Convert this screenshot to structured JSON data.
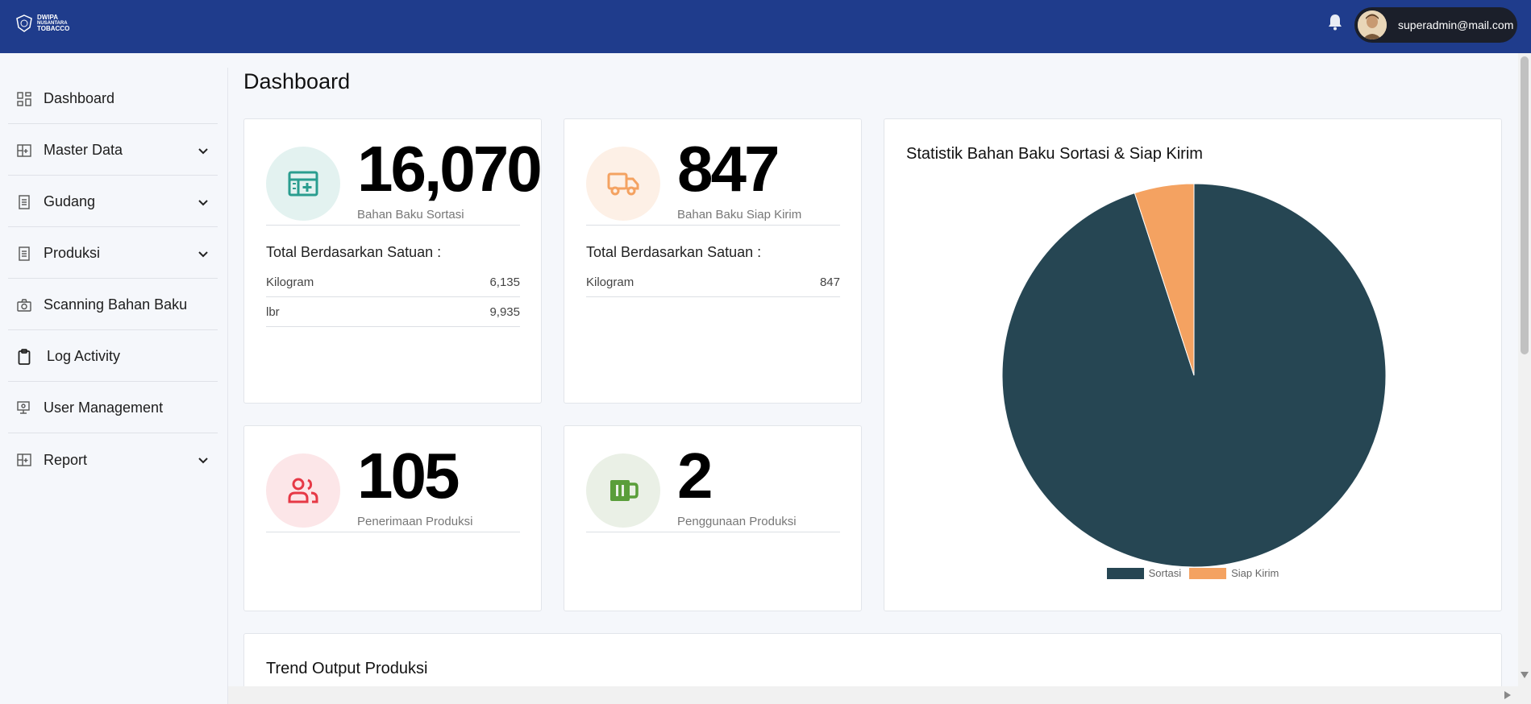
{
  "brand": {
    "line1": "DWIPA",
    "line2": "NUSANTARA",
    "line3": "TOBACCO"
  },
  "header": {
    "user_email": "superadmin@mail.com"
  },
  "sidebar": {
    "items": [
      {
        "label": "Dashboard",
        "icon": "grid-icon"
      },
      {
        "label": "Master Data",
        "icon": "table-icon"
      },
      {
        "label": "Gudang",
        "icon": "document-icon"
      },
      {
        "label": "Produksi",
        "icon": "document-icon"
      },
      {
        "label": "Scanning Bahan Baku",
        "icon": "camera-icon"
      },
      {
        "label": "Log Activity",
        "icon": "clipboard-icon"
      },
      {
        "label": "User Management",
        "icon": "user-monitor-icon"
      },
      {
        "label": "Report",
        "icon": "table-icon"
      }
    ]
  },
  "main": {
    "title": "Dashboard",
    "cards": {
      "sortasi": {
        "value": "16,070",
        "label": "Bahan Baku Sortasi",
        "subtitle": "Total Berdasarkan Satuan :",
        "units": [
          {
            "name": "Kilogram",
            "value": "6,135"
          },
          {
            "name": "lbr",
            "value": "9,935"
          }
        ]
      },
      "siap_kirim": {
        "value": "847",
        "label": "Bahan Baku Siap Kirim",
        "subtitle": "Total Berdasarkan Satuan :",
        "units": [
          {
            "name": "Kilogram",
            "value": "847"
          }
        ]
      },
      "penerimaan": {
        "value": "105",
        "label": "Penerimaan Produksi"
      },
      "penggunaan": {
        "value": "2",
        "label": "Penggunaan Produksi"
      }
    },
    "trend_title": "Trend Output Produksi"
  },
  "colors": {
    "header": "#1f3c8c",
    "sortasi": "#264653",
    "siap_kirim": "#f4a261",
    "teal": "#2a9d8f",
    "orange": "#f4a261",
    "red": "#e63946",
    "green": "#5a9e3a"
  },
  "chart_data": {
    "type": "pie",
    "title": "Statistik Bahan Baku Sortasi & Siap Kirim",
    "categories": [
      "Sortasi",
      "Siap Kirim"
    ],
    "values": [
      16070,
      847
    ],
    "colors": [
      "#264653",
      "#f4a261"
    ],
    "legend": "bottom"
  }
}
